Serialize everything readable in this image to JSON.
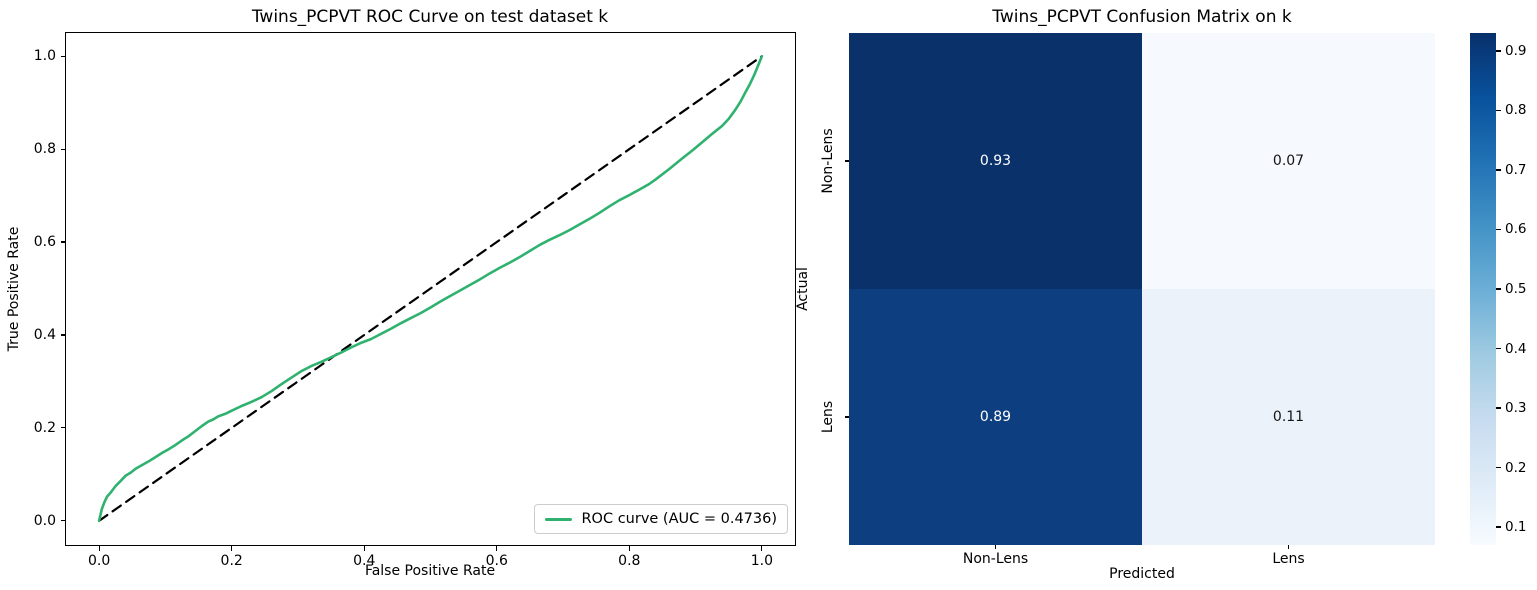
{
  "window": {
    "background": "#ffffff"
  },
  "roc_plot": {
    "title": "Twins_PCPVT ROC Curve on test dataset k",
    "xlabel": "False Positive Rate",
    "ylabel": "True Positive Rate",
    "x_tick_labels": [
      "0.0",
      "0.2",
      "0.4",
      "0.6",
      "0.8",
      "1.0"
    ],
    "y_tick_labels": [
      "0.0",
      "0.2",
      "0.4",
      "0.6",
      "0.8",
      "1.0"
    ],
    "legend_label": "ROC curve (AUC = 0.4736)",
    "curve_color": "#2fb26f",
    "diagonal_color": "#000000"
  },
  "confusion_matrix": {
    "title": "Twins_PCPVT Confusion Matrix on k",
    "xlabel": "Predicted",
    "ylabel": "Actual",
    "x_tick_labels": [
      "Non-Lens",
      "Lens"
    ],
    "y_tick_labels": [
      "Non-Lens",
      "Lens"
    ],
    "cell_values": [
      [
        "0.93",
        "0.07"
      ],
      [
        "0.89",
        "0.11"
      ]
    ],
    "cell_colors": [
      [
        "#0b316b",
        "#f6f9fe"
      ],
      [
        "#0d3e7f",
        "#ecf2fa"
      ]
    ],
    "cell_text_colors": [
      [
        "#ffffff",
        "#151515"
      ],
      [
        "#ffffff",
        "#151515"
      ]
    ]
  },
  "colorbar": {
    "tick_labels": [
      "0.9",
      "0.8",
      "0.7",
      "0.6",
      "0.5",
      "0.4",
      "0.3",
      "0.2",
      "0.1"
    ],
    "vmin": 0.07,
    "vmax": 0.93,
    "gradient_stops": [
      "#f7fbff",
      "#deebf7",
      "#c6dbef",
      "#9ecae1",
      "#6baed6",
      "#4292c6",
      "#2171b5",
      "#08519c",
      "#08306b"
    ]
  },
  "chart_data": [
    {
      "type": "line",
      "title": "Twins_PCPVT ROC Curve on test dataset k",
      "xlabel": "False Positive Rate",
      "ylabel": "True Positive Rate",
      "xlim": [
        -0.05,
        1.05
      ],
      "ylim": [
        -0.05,
        1.05
      ],
      "x_ticks": [
        0.0,
        0.2,
        0.4,
        0.6,
        0.8,
        1.0
      ],
      "y_ticks": [
        0.0,
        0.2,
        0.4,
        0.6,
        0.8,
        1.0
      ],
      "grid": false,
      "legend_position": "lower right",
      "auc": 0.4736,
      "series": [
        {
          "name": "ROC curve (AUC = 0.4736)",
          "color": "#2fb26f",
          "line_style": "solid",
          "line_width": 2.6,
          "points": [
            [
              0.0,
              0.0
            ],
            [
              0.004,
              0.025
            ],
            [
              0.008,
              0.04
            ],
            [
              0.012,
              0.052
            ],
            [
              0.018,
              0.062
            ],
            [
              0.025,
              0.075
            ],
            [
              0.032,
              0.085
            ],
            [
              0.04,
              0.097
            ],
            [
              0.048,
              0.104
            ],
            [
              0.055,
              0.112
            ],
            [
              0.065,
              0.12
            ],
            [
              0.075,
              0.128
            ],
            [
              0.085,
              0.137
            ],
            [
              0.095,
              0.146
            ],
            [
              0.105,
              0.154
            ],
            [
              0.115,
              0.163
            ],
            [
              0.125,
              0.173
            ],
            [
              0.135,
              0.182
            ],
            [
              0.145,
              0.193
            ],
            [
              0.155,
              0.204
            ],
            [
              0.165,
              0.214
            ],
            [
              0.172,
              0.218
            ],
            [
              0.18,
              0.225
            ],
            [
              0.19,
              0.23
            ],
            [
              0.2,
              0.237
            ],
            [
              0.215,
              0.247
            ],
            [
              0.23,
              0.256
            ],
            [
              0.245,
              0.266
            ],
            [
              0.26,
              0.279
            ],
            [
              0.275,
              0.294
            ],
            [
              0.29,
              0.308
            ],
            [
              0.305,
              0.322
            ],
            [
              0.32,
              0.333
            ],
            [
              0.335,
              0.342
            ],
            [
              0.35,
              0.352
            ],
            [
              0.365,
              0.362
            ],
            [
              0.38,
              0.373
            ],
            [
              0.395,
              0.383
            ],
            [
              0.41,
              0.391
            ],
            [
              0.425,
              0.402
            ],
            [
              0.44,
              0.413
            ],
            [
              0.455,
              0.425
            ],
            [
              0.47,
              0.436
            ],
            [
              0.485,
              0.447
            ],
            [
              0.5,
              0.459
            ],
            [
              0.515,
              0.472
            ],
            [
              0.53,
              0.484
            ],
            [
              0.545,
              0.496
            ],
            [
              0.56,
              0.508
            ],
            [
              0.575,
              0.52
            ],
            [
              0.59,
              0.533
            ],
            [
              0.605,
              0.545
            ],
            [
              0.62,
              0.556
            ],
            [
              0.635,
              0.568
            ],
            [
              0.65,
              0.581
            ],
            [
              0.665,
              0.594
            ],
            [
              0.68,
              0.605
            ],
            [
              0.695,
              0.615
            ],
            [
              0.71,
              0.626
            ],
            [
              0.725,
              0.638
            ],
            [
              0.74,
              0.65
            ],
            [
              0.755,
              0.663
            ],
            [
              0.77,
              0.677
            ],
            [
              0.785,
              0.69
            ],
            [
              0.8,
              0.701
            ],
            [
              0.815,
              0.713
            ],
            [
              0.83,
              0.725
            ],
            [
              0.84,
              0.735
            ],
            [
              0.86,
              0.757
            ],
            [
              0.88,
              0.78
            ],
            [
              0.895,
              0.797
            ],
            [
              0.91,
              0.815
            ],
            [
              0.925,
              0.833
            ],
            [
              0.94,
              0.85
            ],
            [
              0.95,
              0.865
            ],
            [
              0.96,
              0.885
            ],
            [
              0.968,
              0.903
            ],
            [
              0.975,
              0.922
            ],
            [
              0.982,
              0.94
            ],
            [
              0.988,
              0.958
            ],
            [
              0.993,
              0.975
            ],
            [
              1.0,
              1.0
            ]
          ]
        },
        {
          "name": "chance diagonal",
          "color": "#000000",
          "line_style": "dashed",
          "line_width": 2.2,
          "points": [
            [
              0.0,
              0.0
            ],
            [
              1.0,
              1.0
            ]
          ]
        }
      ]
    },
    {
      "type": "heatmap",
      "title": "Twins_PCPVT Confusion Matrix on k",
      "xlabel": "Predicted",
      "ylabel": "Actual",
      "x_categories": [
        "Non-Lens",
        "Lens"
      ],
      "y_categories": [
        "Non-Lens",
        "Lens"
      ],
      "values": [
        [
          0.93,
          0.07
        ],
        [
          0.89,
          0.11
        ]
      ],
      "colormap": "Blues",
      "vmin": 0.07,
      "vmax": 0.93,
      "colorbar_ticks": [
        0.9,
        0.8,
        0.7,
        0.6,
        0.5,
        0.4,
        0.3,
        0.2,
        0.1
      ],
      "legend_position": "right colorbar"
    }
  ]
}
